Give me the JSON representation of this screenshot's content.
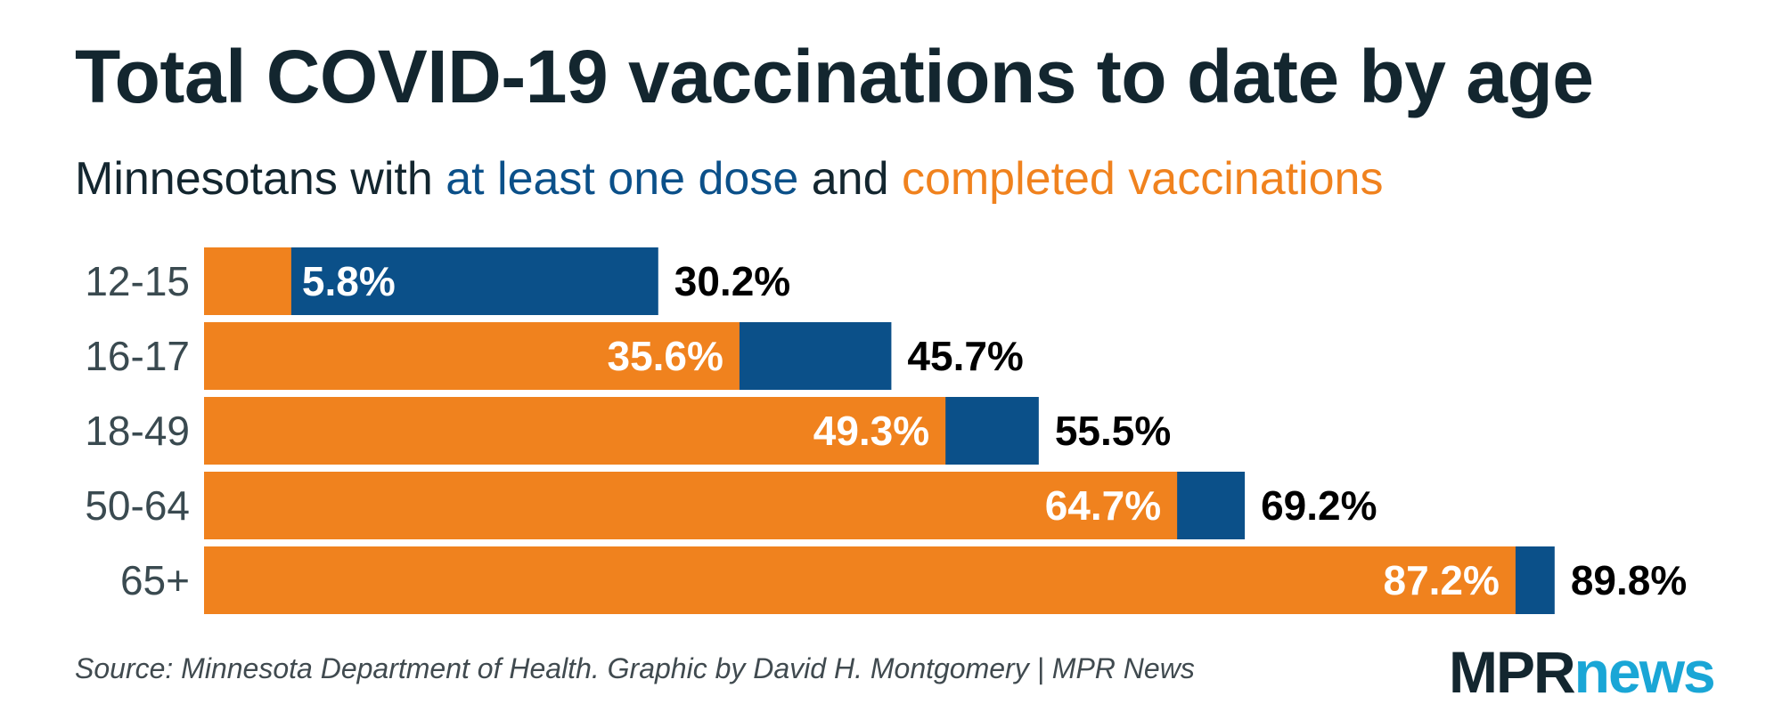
{
  "colors": {
    "first_dose": "#0b5089",
    "completed": "#f0821e",
    "title": "#13262f",
    "logo_news": "#1aa6d6"
  },
  "subtitle": {
    "prefix": "Minnesotans with ",
    "dose_text": "at least one dose",
    "middle": " and ",
    "completed_text": "completed vaccinations"
  },
  "source": "Source: Minnesota Department of Health. Graphic by David H. Montgomery | MPR News",
  "logo": {
    "part1": "MPR",
    "part2": "news"
  },
  "chart_data": {
    "type": "bar",
    "orientation": "horizontal",
    "title": "Total COVID-19 vaccinations to date by age",
    "categories": [
      "12-15",
      "16-17",
      "18-49",
      "50-64",
      "65+"
    ],
    "series": [
      {
        "name": "at least one dose",
        "values": [
          30.2,
          45.7,
          55.5,
          69.2,
          89.8
        ],
        "labels": [
          "30.2%",
          "45.7%",
          "55.5%",
          "69.2%",
          "89.8%"
        ]
      },
      {
        "name": "completed vaccinations",
        "values": [
          5.8,
          35.6,
          49.3,
          64.7,
          87.2
        ],
        "labels": [
          "5.8%",
          "35.6%",
          "49.3%",
          "64.7%",
          "87.2%"
        ]
      }
    ],
    "xlim": [
      0,
      100
    ],
    "grid": false
  }
}
